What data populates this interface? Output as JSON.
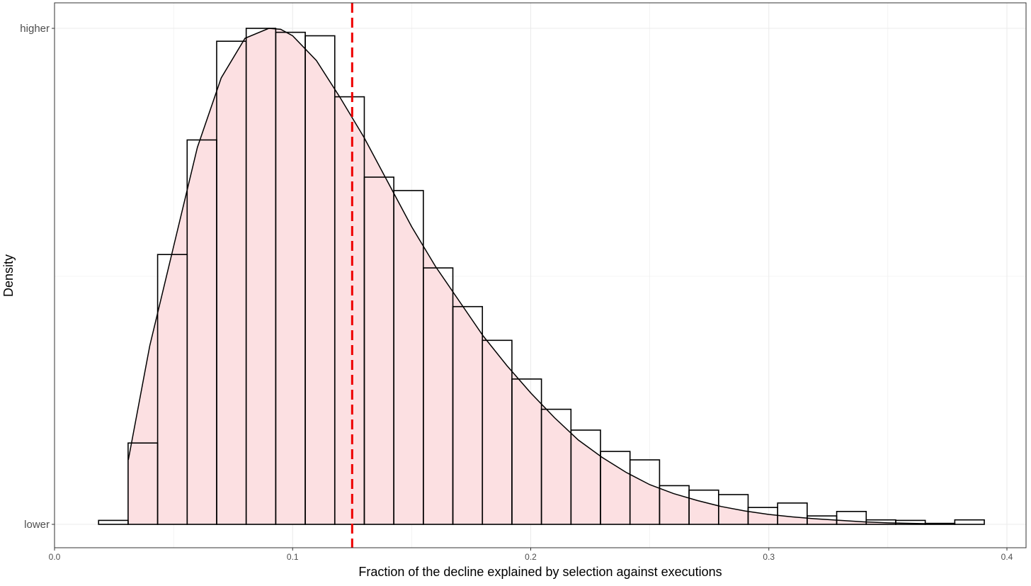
{
  "chart_data": {
    "type": "histogram",
    "title": "",
    "xlabel": "Fraction of the decline explained by selection against executions",
    "ylabel": "Density",
    "xlim": [
      0,
      0.4
    ],
    "x_ticks": [
      {
        "value": 0.0,
        "label": "0.0"
      },
      {
        "value": 0.1,
        "label": "0.1"
      },
      {
        "value": 0.2,
        "label": "0.2"
      },
      {
        "value": 0.3,
        "label": "0.3"
      },
      {
        "value": 0.4,
        "label": "0.4"
      }
    ],
    "y_ticks": [
      {
        "value": 0.0,
        "label": "lower"
      },
      {
        "value": 1.0,
        "label": "higher"
      }
    ],
    "grid": true,
    "bin_width": 0.0124,
    "bins": [
      {
        "x0": 0.0185,
        "density": 0.008
      },
      {
        "x0": 0.0309,
        "density": 0.164
      },
      {
        "x0": 0.0433,
        "density": 0.544
      },
      {
        "x0": 0.0557,
        "density": 0.775
      },
      {
        "x0": 0.0681,
        "density": 0.974
      },
      {
        "x0": 0.0805,
        "density": 1.0
      },
      {
        "x0": 0.0929,
        "density": 0.992
      },
      {
        "x0": 0.1053,
        "density": 0.985
      },
      {
        "x0": 0.1177,
        "density": 0.862
      },
      {
        "x0": 0.1301,
        "density": 0.7
      },
      {
        "x0": 0.1425,
        "density": 0.673
      },
      {
        "x0": 0.1549,
        "density": 0.517
      },
      {
        "x0": 0.1673,
        "density": 0.439
      },
      {
        "x0": 0.1797,
        "density": 0.371
      },
      {
        "x0": 0.1921,
        "density": 0.293
      },
      {
        "x0": 0.2045,
        "density": 0.232
      },
      {
        "x0": 0.2169,
        "density": 0.19
      },
      {
        "x0": 0.2293,
        "density": 0.147
      },
      {
        "x0": 0.2417,
        "density": 0.13
      },
      {
        "x0": 0.2541,
        "density": 0.078
      },
      {
        "x0": 0.2665,
        "density": 0.069
      },
      {
        "x0": 0.2789,
        "density": 0.06
      },
      {
        "x0": 0.2913,
        "density": 0.034
      },
      {
        "x0": 0.3037,
        "density": 0.043
      },
      {
        "x0": 0.3161,
        "density": 0.017
      },
      {
        "x0": 0.3285,
        "density": 0.026
      },
      {
        "x0": 0.3409,
        "density": 0.009
      },
      {
        "x0": 0.3533,
        "density": 0.008
      },
      {
        "x0": 0.3657,
        "density": 0.002
      },
      {
        "x0": 0.3781,
        "density": 0.009
      }
    ],
    "density_curve": {
      "x": [
        0.031,
        0.04,
        0.05,
        0.06,
        0.07,
        0.08,
        0.09,
        0.095,
        0.1,
        0.11,
        0.12,
        0.13,
        0.14,
        0.15,
        0.16,
        0.17,
        0.18,
        0.19,
        0.2,
        0.21,
        0.22,
        0.23,
        0.24,
        0.25,
        0.26,
        0.27,
        0.28,
        0.29,
        0.3,
        0.31,
        0.32,
        0.33,
        0.34,
        0.35,
        0.36,
        0.37,
        0.378
      ],
      "y": [
        0.13,
        0.36,
        0.56,
        0.76,
        0.9,
        0.98,
        1.0,
        0.998,
        0.985,
        0.935,
        0.86,
        0.78,
        0.69,
        0.6,
        0.52,
        0.45,
        0.38,
        0.32,
        0.265,
        0.215,
        0.17,
        0.135,
        0.105,
        0.08,
        0.062,
        0.048,
        0.036,
        0.027,
        0.02,
        0.015,
        0.011,
        0.008,
        0.005,
        0.003,
        0.002,
        0.001,
        0.0005
      ]
    },
    "vline": {
      "x": 0.125,
      "color": "#ee0000",
      "style": "dashed"
    },
    "colors": {
      "fill": "#fce0e2",
      "bar_outline": "#000000",
      "curve": "#000000",
      "grid": "#ebebeb",
      "panel_border": "#333333"
    }
  }
}
